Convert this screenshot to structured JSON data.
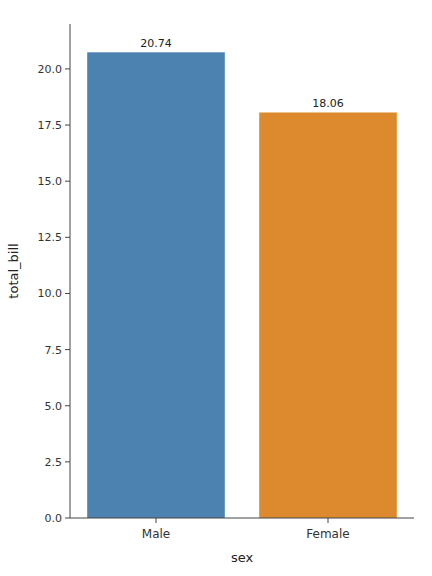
{
  "chart_data": {
    "type": "bar",
    "categories": [
      "Male",
      "Female"
    ],
    "values": [
      20.74,
      18.06
    ],
    "colors": [
      "#4c82b0",
      "#dd8a2e"
    ],
    "xlabel": "sex",
    "ylabel": "total_bill",
    "ylim": [
      0,
      22
    ],
    "yticks": [
      {
        "value": 0,
        "label": "0.0"
      },
      2.5,
      {
        "value": 5,
        "label": "5.0"
      },
      7.5,
      {
        "value": 10,
        "label": "10.0"
      },
      12.5,
      {
        "value": 15,
        "label": "15.0"
      },
      17.5,
      {
        "value": 20,
        "label": "20.0"
      }
    ],
    "data_labels": true,
    "grid": false
  }
}
